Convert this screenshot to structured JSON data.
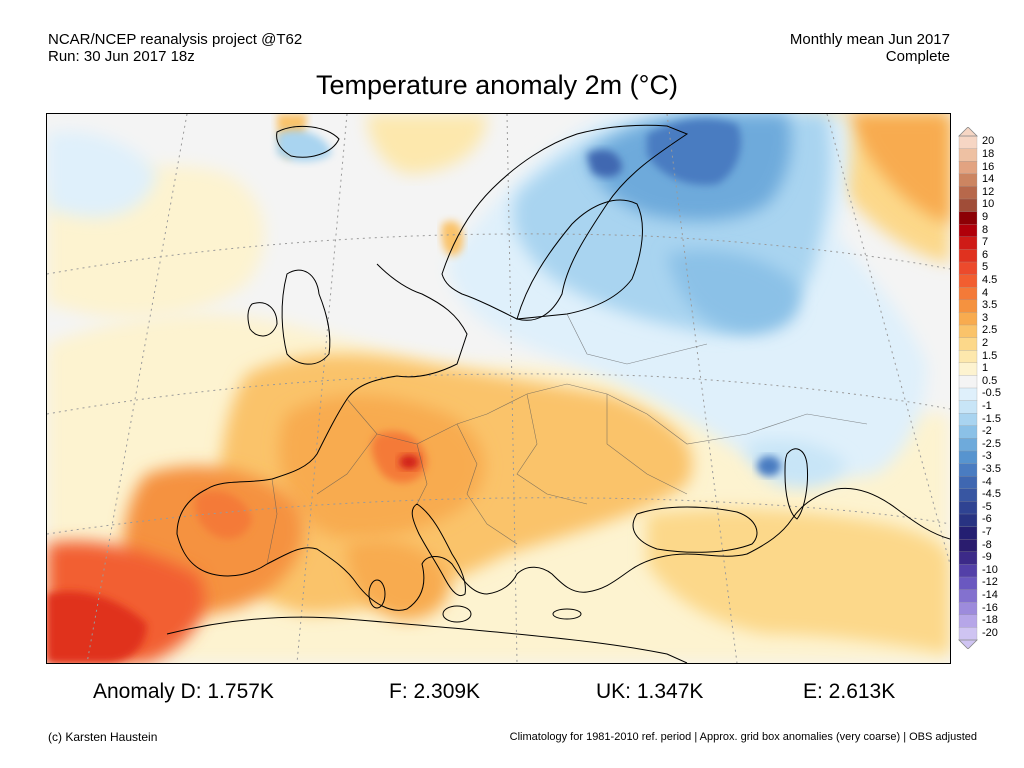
{
  "header": {
    "line1_left": "NCAR/NCEP reanalysis project @T62",
    "line2_left": "Run: 30 Jun 2017 18z",
    "line1_right": "Monthly mean Jun 2017",
    "line2_right": "Complete"
  },
  "title": "Temperature anomaly 2m (°C)",
  "colorbar": {
    "labels": [
      "20",
      "18",
      "16",
      "14",
      "12",
      "10",
      "9",
      "8",
      "7",
      "6",
      "5",
      "4.5",
      "4",
      "3.5",
      "3",
      "2.5",
      "2",
      "1.5",
      "1",
      "0.5",
      "-0.5",
      "-1",
      "-1.5",
      "-2",
      "-2.5",
      "-3",
      "-3.5",
      "-4",
      "-4.5",
      "-5",
      "-6",
      "-7",
      "-8",
      "-9",
      "-10",
      "-12",
      "-14",
      "-16",
      "-18",
      "-20"
    ],
    "colors": [
      "#f6d6c4",
      "#eec1a3",
      "#e2a381",
      "#cc8561",
      "#b7684b",
      "#a04d38",
      "#8c0005",
      "#b0000a",
      "#cf1b17",
      "#e0321f",
      "#ec4a2c",
      "#f25e30",
      "#f47a38",
      "#f5923f",
      "#f8ab4f",
      "#fac36a",
      "#fcd88a",
      "#fde8ad",
      "#fdf3d0",
      "#f4f4f4",
      "#dff0fb",
      "#c8e5f7",
      "#a9d4f0",
      "#8bc1e7",
      "#6eaadb",
      "#5794cf",
      "#4a7cc1",
      "#3f67b1",
      "#3856a2",
      "#2f4392",
      "#283382",
      "#241f72",
      "#2a1c6e",
      "#3c2a88",
      "#5340a8",
      "#6a58c0",
      "#8371cf",
      "#9d8bdc",
      "#b6a6e8",
      "#cfc4f2"
    ]
  },
  "stats": {
    "d": "Anomaly D: 1.757K",
    "f": "F: 2.309K",
    "uk": "UK: 1.347K",
    "e": "E: 2.613K"
  },
  "footer": {
    "left": "(c) Karsten Haustein",
    "right": "Climatology for 1981-2010 ref. period | Approx. grid box anomalies (very coarse) | OBS adjusted"
  },
  "map": {
    "land_outline_color": "#000000",
    "ocean_neutral_color": "#f4f4f4"
  }
}
